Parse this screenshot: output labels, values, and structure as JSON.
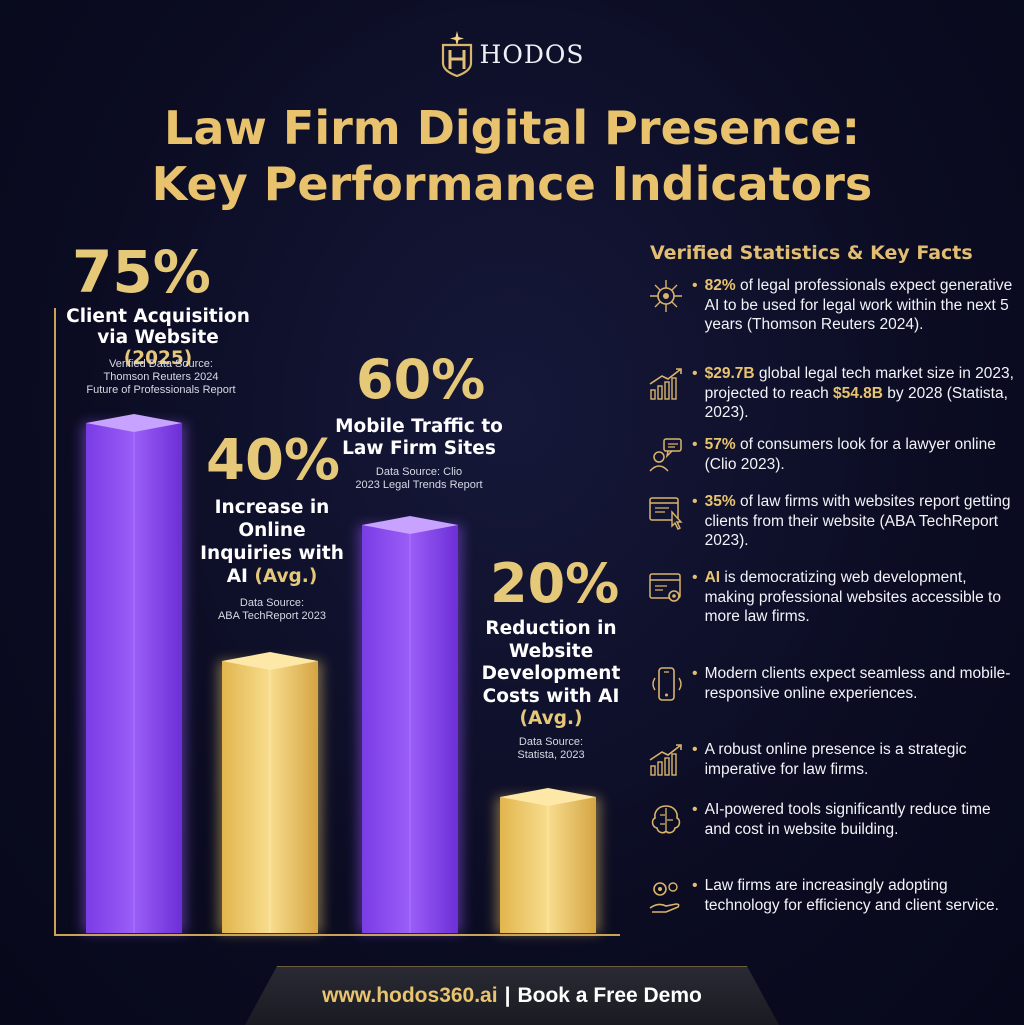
{
  "brand": {
    "name": "HODOS"
  },
  "title": {
    "line1": "Law Firm Digital Presence:",
    "line2": "Key Performance Indicators"
  },
  "chart_data": {
    "type": "bar",
    "values": [
      75,
      40,
      60,
      20
    ],
    "unit": "%",
    "colors": [
      "#8c4cf0",
      "#f1c95d",
      "#8c4cf0",
      "#f1c95d"
    ],
    "bars": [
      {
        "value_label": "75%",
        "label": "Client Acquisition via Website",
        "label_suffix": "(2025)",
        "source": [
          "Verified Data Source:",
          "Thomson Reuters 2024",
          "Future of Professionals Report"
        ]
      },
      {
        "value_label": "40%",
        "label": "Increase in Online Inquiries with AI",
        "label_suffix": "(Avg.)",
        "source": [
          "Data Source:",
          "ABA TechReport 2023"
        ]
      },
      {
        "value_label": "60%",
        "label": "Mobile Traffic to Law Firm Sites",
        "label_suffix": "",
        "source": [
          "Data Source: Clio",
          "2023 Legal Trends Report"
        ]
      },
      {
        "value_label": "20%",
        "label": "Reduction in Website Development Costs with AI",
        "label_suffix": "(Avg.)",
        "source": [
          "Data Source:",
          "Statista, 2023"
        ]
      }
    ]
  },
  "facts": {
    "title": "Verified Statistics & Key Facts",
    "items": [
      {
        "icon": "ai-brain-circuit-icon",
        "hl": "82%",
        "text": " of legal professionals expect generative AI to be used for legal work within the next 5 years (Thomson Reuters 2024)."
      },
      {
        "icon": "growth-bar-chart-icon",
        "hl": "$29.7B",
        "text": " global legal tech market size in 2023, projected to reach ",
        "hl2": "$54.8B",
        "text2": " by 2028 (Statista, 2023)."
      },
      {
        "icon": "consumer-chat-icon",
        "hl": "57%",
        "text": " of consumers look for a lawyer online (Clio 2023)."
      },
      {
        "icon": "website-click-icon",
        "hl": "35%",
        "text": " of law firms with websites report getting clients from their website (ABA TechReport 2023)."
      },
      {
        "icon": "web-settings-icon",
        "hl": "AI",
        "text": " is democratizing web development, making professional websites accessible to more law firms."
      },
      {
        "icon": "mobile-phone-icon",
        "hl": "",
        "text": "Modern clients expect seamless and mobile-responsive online experiences."
      },
      {
        "icon": "growth-bar-chart-icon",
        "hl": "",
        "text": "A robust online presence is a strategic imperative for law firms."
      },
      {
        "icon": "ai-brain-icon",
        "hl": "",
        "text": "AI-powered tools significantly reduce time and cost in website building."
      },
      {
        "icon": "gear-hand-icon",
        "hl": "",
        "text": "Law firms are increasingly adopting technology for efficiency and client service."
      }
    ]
  },
  "footer": {
    "url": "www.hodos360.ai",
    "separator": "|",
    "cta": "Book a Free Demo"
  }
}
